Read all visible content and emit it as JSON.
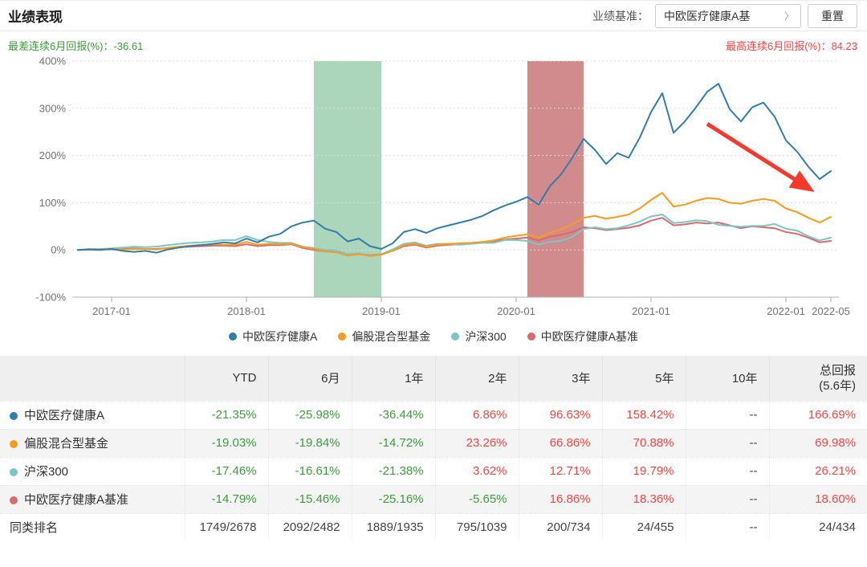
{
  "header": {
    "title": "业绩表现",
    "benchmark_label": "业绩基准：",
    "benchmark_value": "中欧医疗健康A基",
    "benchmark_chevron": "〉",
    "reset_label": "重置"
  },
  "stats": {
    "worst_label": "最差连续6月回报(%)：",
    "worst_value": "-36.61",
    "best_label": "最高连续6月回报(%)：",
    "best_value": "84.23"
  },
  "chart_data": {
    "type": "line",
    "x_start": "2016-10",
    "x_end": "2022-05",
    "x_ticks": [
      "2017-01",
      "2018-01",
      "2019-01",
      "2020-01",
      "2021-01",
      "2022-01",
      "2022-05"
    ],
    "y_ticks": [
      {
        "label": "400%",
        "value": 400
      },
      {
        "label": "300%",
        "value": 300
      },
      {
        "label": "200%",
        "value": 200
      },
      {
        "label": "100%",
        "value": 100
      },
      {
        "label": "0%",
        "value": 0
      },
      {
        "label": "-100%",
        "value": -100
      }
    ],
    "ylim": [
      -100,
      400
    ],
    "grid": true,
    "legend_position": "bottom",
    "bands": [
      {
        "name": "highlight-band-green",
        "from": "2018-07",
        "to": "2019-01",
        "color": "#abd6bc"
      },
      {
        "name": "highlight-band-red",
        "from": "2020-02",
        "to": "2020-07",
        "color": "#d18b8d"
      }
    ],
    "annotation_arrow": {
      "name": "trend-arrow",
      "from_month": "2021-06",
      "from_value": 267,
      "to_month": "2022-03",
      "to_value": 131,
      "color": "#f5392c"
    },
    "series": [
      {
        "name": "中欧医疗健康A",
        "color": "#337ea8",
        "values": [
          0,
          1,
          0,
          2,
          -2,
          -4,
          -2,
          -6,
          1,
          5,
          8,
          10,
          13,
          16,
          14,
          24,
          16,
          28,
          34,
          50,
          58,
          62,
          45,
          38,
          18,
          24,
          8,
          2,
          14,
          38,
          44,
          36,
          46,
          52,
          58,
          64,
          72,
          84,
          94,
          102,
          112,
          96,
          135,
          160,
          195,
          235,
          212,
          182,
          205,
          195,
          238,
          292,
          332,
          248,
          272,
          302,
          335,
          352,
          298,
          272,
          302,
          312,
          282,
          232,
          208,
          176,
          150,
          167
        ]
      },
      {
        "name": "偏股混合型基金",
        "color": "#f89b1e",
        "values": [
          0,
          1,
          1,
          2,
          1,
          2,
          2,
          1,
          4,
          7,
          9,
          11,
          12,
          11,
          11,
          17,
          11,
          13,
          12,
          13,
          6,
          2,
          -3,
          -5,
          -12,
          -9,
          -13,
          -10,
          -2,
          10,
          13,
          7,
          11,
          13,
          14,
          15,
          17,
          20,
          26,
          30,
          33,
          26,
          36,
          43,
          54,
          68,
          72,
          66,
          70,
          75,
          88,
          106,
          121,
          92,
          96,
          104,
          110,
          108,
          100,
          98,
          104,
          108,
          104,
          88,
          80,
          68,
          58,
          70
        ]
      },
      {
        "name": "沪深300",
        "color": "#7cc7c4",
        "values": [
          0,
          2,
          2,
          3,
          5,
          7,
          6,
          7,
          10,
          13,
          15,
          16,
          18,
          21,
          21,
          29,
          21,
          17,
          15,
          15,
          7,
          4,
          0,
          -1,
          -9,
          -7,
          -12,
          -9,
          1,
          13,
          16,
          9,
          13,
          13,
          11,
          13,
          15,
          15,
          21,
          21,
          19,
          11,
          17,
          19,
          28,
          44,
          48,
          44,
          46,
          52,
          60,
          71,
          75,
          57,
          59,
          63,
          61,
          53,
          51,
          49,
          51,
          51,
          55,
          45,
          41,
          29,
          20,
          26
        ]
      },
      {
        "name": "中欧医疗健康A基准",
        "color": "#d96a6e",
        "values": [
          0,
          1,
          1,
          1,
          2,
          3,
          2,
          2,
          4,
          6,
          7,
          8,
          9,
          9,
          8,
          12,
          8,
          10,
          10,
          12,
          4,
          0,
          -3,
          -5,
          -10,
          -8,
          -11,
          -9,
          -2,
          8,
          11,
          5,
          9,
          11,
          12,
          14,
          16,
          18,
          22,
          24,
          26,
          20,
          28,
          32,
          38,
          48,
          46,
          42,
          44,
          47,
          52,
          62,
          68,
          52,
          54,
          58,
          56,
          58,
          52,
          46,
          50,
          48,
          46,
          38,
          34,
          26,
          16,
          19
        ]
      }
    ]
  },
  "table": {
    "period_columns": [
      "YTD",
      "6月",
      "1年",
      "2年",
      "3年",
      "5年",
      "10年"
    ],
    "total_column": {
      "line1": "总回报",
      "line2": "(5.6年)"
    },
    "rows": [
      {
        "name": "中欧医疗健康A",
        "dot": "#337ea8",
        "values": [
          "-21.35%",
          "-25.98%",
          "-36.44%",
          "6.86%",
          "96.63%",
          "158.42%",
          "--",
          "166.69%"
        ],
        "colors": [
          "g",
          "g",
          "g",
          "r",
          "r",
          "r",
          "n",
          "r"
        ]
      },
      {
        "name": "偏股混合型基金",
        "dot": "#f89b1e",
        "values": [
          "-19.03%",
          "-19.84%",
          "-14.72%",
          "23.26%",
          "66.86%",
          "70.88%",
          "--",
          "69.98%"
        ],
        "colors": [
          "g",
          "g",
          "g",
          "r",
          "r",
          "r",
          "n",
          "r"
        ]
      },
      {
        "name": "沪深300",
        "dot": "#7cc7c4",
        "values": [
          "-17.46%",
          "-16.61%",
          "-21.38%",
          "3.62%",
          "12.71%",
          "19.79%",
          "--",
          "26.21%"
        ],
        "colors": [
          "g",
          "g",
          "g",
          "r",
          "r",
          "r",
          "n",
          "r"
        ]
      },
      {
        "name": "中欧医疗健康A基准",
        "dot": "#d96a6e",
        "values": [
          "-14.79%",
          "-15.46%",
          "-25.16%",
          "-5.65%",
          "16.86%",
          "18.36%",
          "--",
          "18.60%"
        ],
        "colors": [
          "g",
          "g",
          "g",
          "g",
          "r",
          "r",
          "n",
          "r"
        ]
      },
      {
        "name": "同类排名",
        "dot": null,
        "values": [
          "1749/2678",
          "2092/2482",
          "1889/1935",
          "795/1039",
          "200/734",
          "24/455",
          "--",
          "24/434"
        ],
        "colors": [
          "n",
          "n",
          "n",
          "n",
          "n",
          "n",
          "n",
          "n"
        ]
      }
    ]
  }
}
